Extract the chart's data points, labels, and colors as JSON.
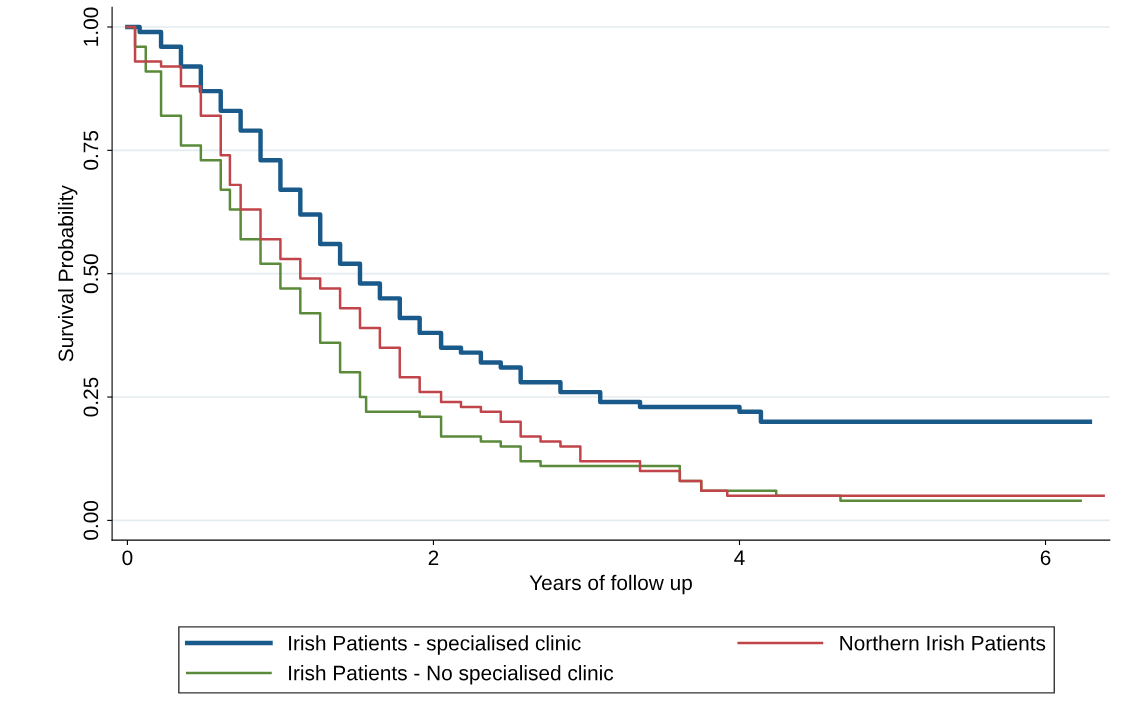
{
  "chart_data": {
    "type": "step",
    "xlabel": "Years of follow up",
    "ylabel": "Survival Probability",
    "xlim": [
      -0.1,
      6.42
    ],
    "xticks": [
      0,
      2,
      4,
      6
    ],
    "ylim": [
      -0.04,
      1.04
    ],
    "yticks": [
      {
        "value": 0,
        "label": "0.00"
      },
      0.25,
      {
        "value": 0.5,
        "label": "0.50"
      },
      0.75,
      {
        "value": 1,
        "label": "1.00"
      }
    ],
    "grid": "y",
    "legend": "bottom",
    "line_style": "solid",
    "marker": "none",
    "series": [
      {
        "name": "Irish Patients - specialised clinic",
        "color": "#1a5a8a",
        "x": [
          0,
          0.08,
          0.22,
          0.35,
          0.48,
          0.61,
          0.74,
          0.87,
          1.0,
          1.13,
          1.26,
          1.39,
          1.52,
          1.65,
          1.78,
          1.91,
          2.05,
          2.18,
          2.31,
          2.44,
          2.57,
          2.83,
          3.09,
          3.35,
          3.88,
          4.0,
          4.14,
          6.29
        ],
        "values": [
          1.0,
          0.99,
          0.96,
          0.92,
          0.87,
          0.83,
          0.79,
          0.73,
          0.67,
          0.62,
          0.56,
          0.52,
          0.48,
          0.45,
          0.41,
          0.38,
          0.35,
          0.34,
          0.32,
          0.31,
          0.28,
          0.26,
          0.24,
          0.23,
          0.23,
          0.22,
          0.2,
          0.2
        ]
      },
      {
        "name": "Irish Patients - No specialised clinic",
        "color": "#5a8a3a",
        "x": [
          0,
          0.05,
          0.12,
          0.22,
          0.35,
          0.48,
          0.61,
          0.67,
          0.74,
          0.87,
          1.0,
          1.13,
          1.26,
          1.39,
          1.52,
          1.56,
          1.78,
          1.91,
          2.05,
          2.31,
          2.44,
          2.57,
          2.7,
          3.55,
          3.61,
          3.75,
          4.24,
          4.66,
          6.23
        ],
        "values": [
          1.0,
          0.96,
          0.91,
          0.82,
          0.76,
          0.73,
          0.67,
          0.63,
          0.57,
          0.52,
          0.47,
          0.42,
          0.36,
          0.3,
          0.25,
          0.22,
          0.22,
          0.21,
          0.17,
          0.16,
          0.15,
          0.12,
          0.11,
          0.11,
          0.08,
          0.06,
          0.05,
          0.04,
          0.04
        ]
      },
      {
        "name": "Northern Irish Patients",
        "color": "#c0444a",
        "x": [
          0,
          0.05,
          0.22,
          0.35,
          0.48,
          0.61,
          0.67,
          0.74,
          0.87,
          1.0,
          1.13,
          1.26,
          1.39,
          1.52,
          1.65,
          1.78,
          1.91,
          2.05,
          2.18,
          2.31,
          2.44,
          2.57,
          2.7,
          2.83,
          2.96,
          3.22,
          3.35,
          3.61,
          3.75,
          3.92,
          6.38
        ],
        "values": [
          1.0,
          0.93,
          0.92,
          0.88,
          0.82,
          0.74,
          0.68,
          0.63,
          0.57,
          0.53,
          0.49,
          0.47,
          0.43,
          0.39,
          0.35,
          0.29,
          0.26,
          0.24,
          0.23,
          0.22,
          0.2,
          0.17,
          0.16,
          0.15,
          0.12,
          0.12,
          0.1,
          0.08,
          0.06,
          0.05,
          0.05
        ]
      }
    ]
  }
}
